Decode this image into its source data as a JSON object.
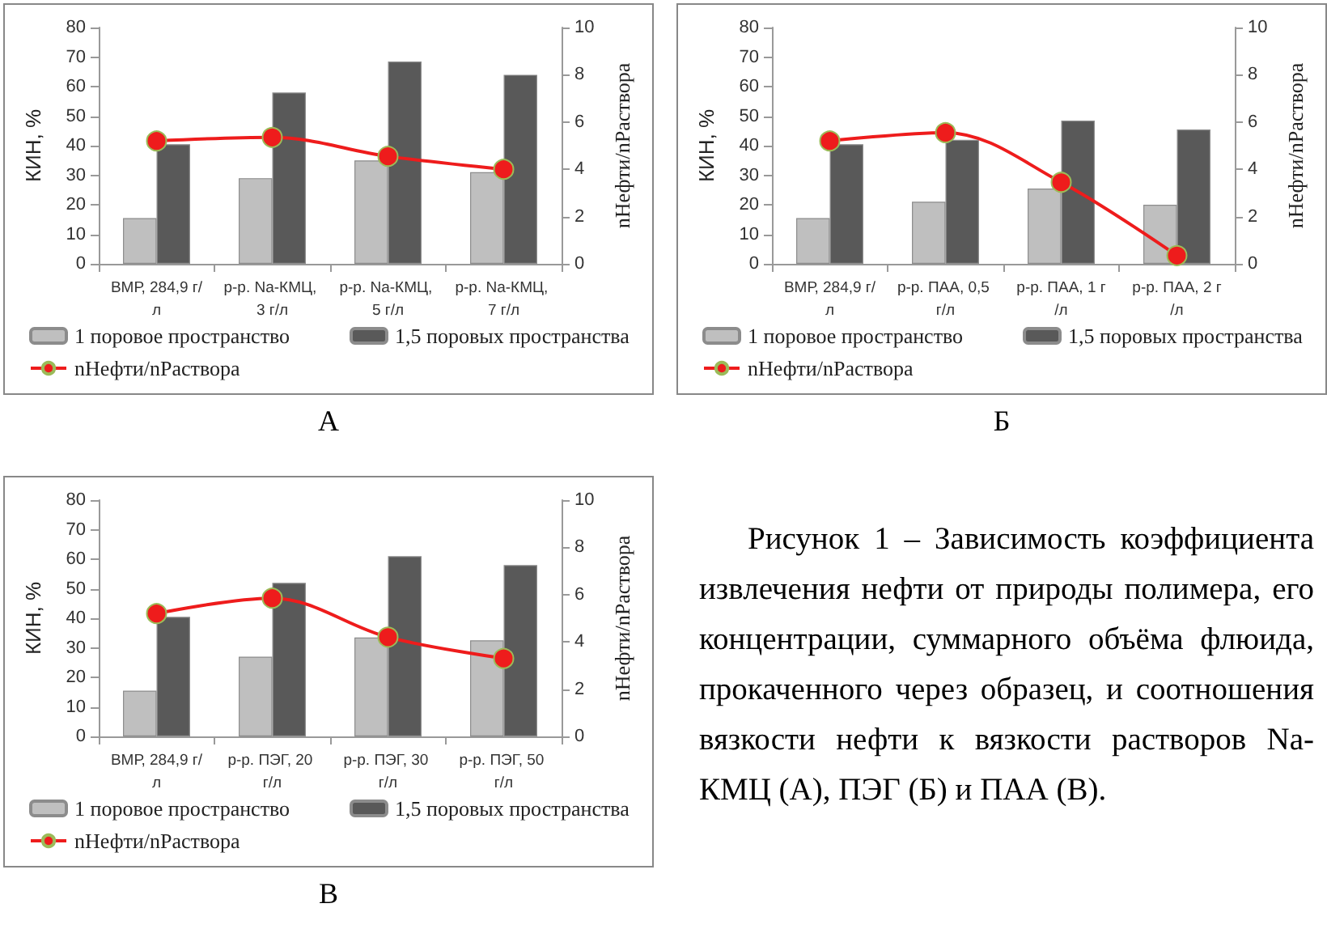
{
  "chart_data": [
    {
      "type": "bar",
      "categories": [
        "ВМР, 284,9 г/л",
        "р-р. Na-КМЦ, 3 г/л",
        "р-р. Na-КМЦ, 5 г/л",
        "р-р. Na-КМЦ, 7 г/л"
      ],
      "ylabel": "КИН, %",
      "y2label": "nНефти/nРаствора",
      "ylim": [
        0,
        80
      ],
      "yticks": [
        0,
        10,
        20,
        30,
        40,
        50,
        60,
        70,
        80
      ],
      "y2lim": [
        0,
        10
      ],
      "y2ticks": [
        0,
        2,
        4,
        6,
        8,
        10
      ],
      "legend": "bottom",
      "grid": false,
      "marker": "circle",
      "annotations": [
        "А"
      ],
      "series": [
        {
          "name": "1 поровое пространство",
          "color": "#bfbfbf",
          "values": [
            15.5,
            29,
            35,
            31
          ]
        },
        {
          "name": "1,5 поровых пространства",
          "color": "#595959",
          "values": [
            40.5,
            58,
            68.5,
            64
          ]
        },
        {
          "name": "nНефти/nРаствора",
          "color": "#ee1c1c",
          "type": "line",
          "axis": "y2",
          "values": [
            5.2,
            5.35,
            4.55,
            4.0
          ]
        }
      ]
    },
    {
      "type": "bar",
      "categories": [
        "ВМР, 284,9 г/л",
        "р-р. ПАА, 0,5 г/л",
        "р-р. ПАА, 1 г/л",
        "р-р. ПАА, 2 г/л"
      ],
      "ylabel": "КИН, %",
      "y2label": "nНефти/nРаствора",
      "ylim": [
        0,
        80
      ],
      "yticks": [
        0,
        10,
        20,
        30,
        40,
        50,
        60,
        70,
        80
      ],
      "y2lim": [
        0,
        10
      ],
      "y2ticks": [
        0,
        2,
        4,
        6,
        8,
        10
      ],
      "legend": "bottom",
      "grid": false,
      "marker": "circle",
      "annotations": [
        "Б"
      ],
      "series": [
        {
          "name": "1 поровое пространство",
          "color": "#bfbfbf",
          "values": [
            15.5,
            21,
            25.5,
            20
          ]
        },
        {
          "name": "1,5 поровых пространства",
          "color": "#595959",
          "values": [
            40.5,
            42,
            48.5,
            45.5
          ]
        },
        {
          "name": "nНефти/nРаствора",
          "color": "#ee1c1c",
          "type": "line",
          "axis": "y2",
          "values": [
            5.2,
            5.55,
            3.45,
            0.35
          ]
        }
      ]
    },
    {
      "type": "bar",
      "categories": [
        "ВМР, 284,9 г/л",
        "р-р. ПЭГ, 20 г/л",
        "р-р. ПЭГ, 30 г/л",
        "р-р. ПЭГ, 50 г/л"
      ],
      "ylabel": "КИН, %",
      "y2label": "nНефти/nРаствора",
      "ylim": [
        0,
        80
      ],
      "yticks": [
        0,
        10,
        20,
        30,
        40,
        50,
        60,
        70,
        80
      ],
      "y2lim": [
        0,
        10
      ],
      "y2ticks": [
        0,
        2,
        4,
        6,
        8,
        10
      ],
      "legend": "bottom",
      "grid": false,
      "marker": "circle",
      "annotations": [
        "В"
      ],
      "series": [
        {
          "name": "1 поровое пространство",
          "color": "#bfbfbf",
          "values": [
            15.5,
            27,
            33.5,
            32.5
          ]
        },
        {
          "name": "1,5 поровых пространства",
          "color": "#595959",
          "values": [
            40.5,
            52,
            61,
            58
          ]
        },
        {
          "name": "nНефти/nРаствора",
          "color": "#ee1c1c",
          "type": "line",
          "axis": "y2",
          "values": [
            5.2,
            5.85,
            4.2,
            3.3
          ]
        }
      ]
    },
    {
      "type": "other",
      "annotations": [
        "Рисунок 1 – Зависимость коэффициента извлечения нефти от природы полимера, его концентрации, суммарного объёма флюида, прокаченного через образец, и соотношения вязкости нефти к вязкости растворов Na-КМЦ (А), ПЭГ (Б) и ПАА (В)."
      ]
    }
  ]
}
